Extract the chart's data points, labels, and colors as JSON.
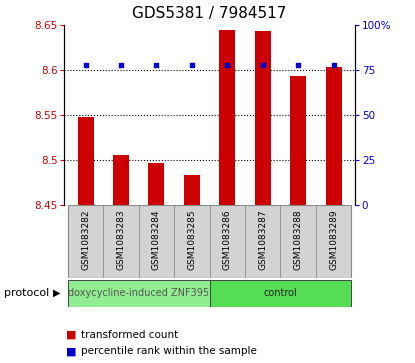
{
  "title": "GDS5381 / 7984517",
  "samples": [
    "GSM1083282",
    "GSM1083283",
    "GSM1083284",
    "GSM1083285",
    "GSM1083286",
    "GSM1083287",
    "GSM1083288",
    "GSM1083289"
  ],
  "bar_values": [
    8.548,
    8.506,
    8.497,
    8.484,
    8.645,
    8.644,
    8.594,
    8.604
  ],
  "percentile_values": [
    78,
    78,
    78,
    78,
    78,
    78,
    78,
    78
  ],
  "bar_color": "#cc0000",
  "dot_color": "#0000cc",
  "ylim_left": [
    8.45,
    8.65
  ],
  "ylim_right": [
    0,
    100
  ],
  "yticks_left": [
    8.45,
    8.5,
    8.55,
    8.6,
    8.65
  ],
  "yticks_right": [
    0,
    25,
    50,
    75,
    100
  ],
  "ytick_labels_left": [
    "8.45",
    "8.5",
    "8.55",
    "8.6",
    "8.65"
  ],
  "ytick_labels_right": [
    "0",
    "25",
    "50",
    "75",
    "100%"
  ],
  "gridlines": [
    8.5,
    8.55,
    8.6
  ],
  "groups": [
    {
      "label": "doxycycline-induced ZNF395",
      "n": 4,
      "color": "#90ee90"
    },
    {
      "label": "control",
      "n": 4,
      "color": "#55dd55"
    }
  ],
  "protocol_label": "protocol",
  "legend_items": [
    {
      "color": "#cc0000",
      "label": "transformed count"
    },
    {
      "color": "#0000cc",
      "label": "percentile rank within the sample"
    }
  ],
  "bar_bottom": 8.45,
  "title_fontsize": 11,
  "tick_label_fontsize": 7.5,
  "sample_label_fontsize": 6.5,
  "group_label_fontsize": 7,
  "legend_fontsize": 7.5,
  "protocol_fontsize": 8
}
